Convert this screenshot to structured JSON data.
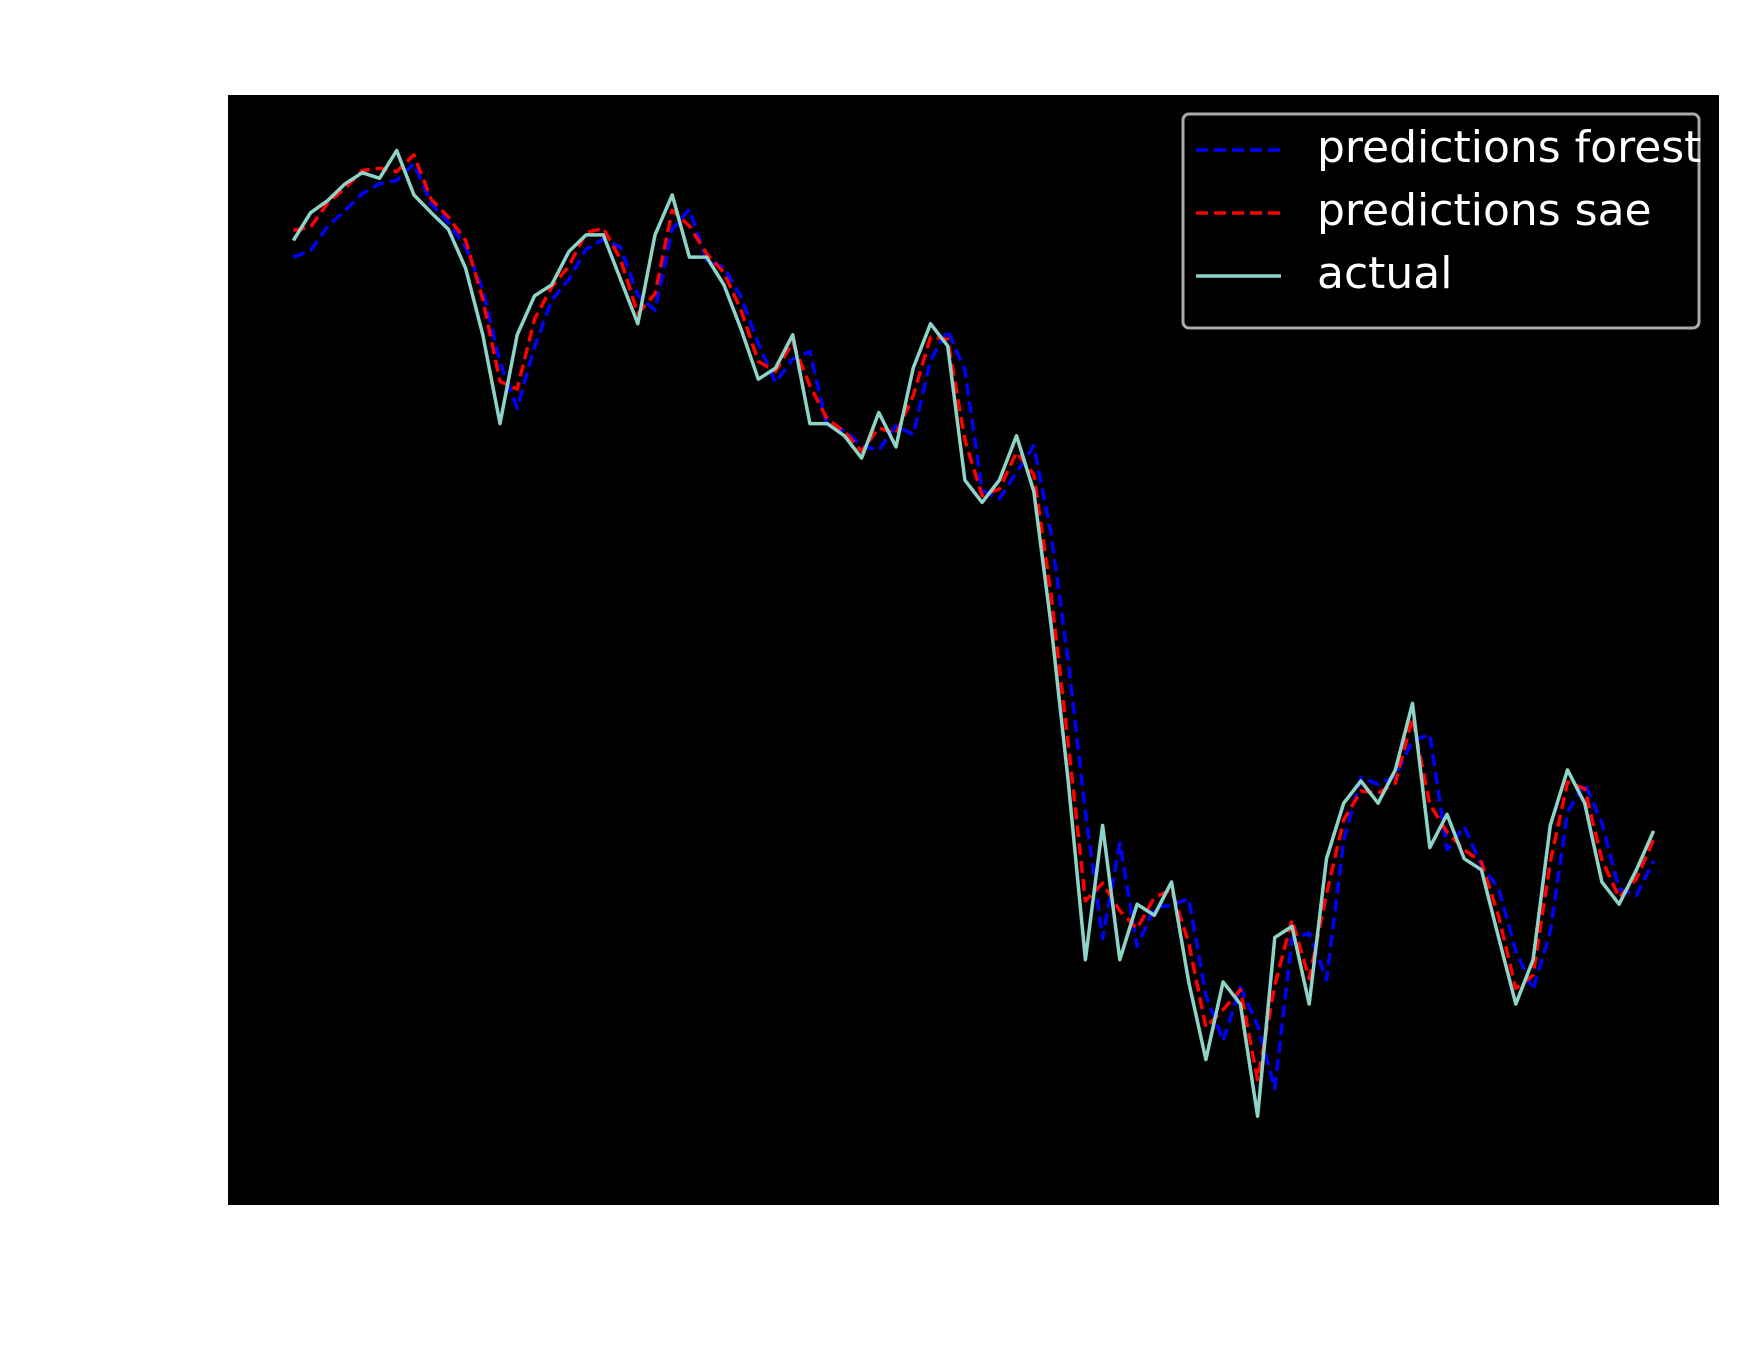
{
  "chart_data": {
    "type": "line",
    "x": [
      0,
      1,
      2,
      3,
      4,
      5,
      6,
      7,
      8,
      9,
      10,
      11,
      12,
      13,
      14,
      15,
      16,
      17,
      18,
      19,
      20,
      21,
      22,
      23,
      24,
      25,
      26,
      27,
      28,
      29,
      30,
      31,
      32,
      33,
      34,
      35,
      36,
      37,
      38,
      39,
      40,
      41,
      42,
      43,
      44,
      45,
      46,
      47,
      48,
      49,
      50,
      51,
      52,
      53,
      54,
      55,
      56,
      57,
      58,
      59,
      60,
      61,
      62,
      63,
      64,
      65,
      66,
      67,
      68,
      69,
      70,
      71,
      72,
      73,
      74,
      75,
      76,
      77,
      78,
      79
    ],
    "series": [
      {
        "name": "predictions forest",
        "color": "#0000ff",
        "linestyle": "dashed",
        "values": [
          85.4,
          86.0,
          88.2,
          89.6,
          91.1,
          92.0,
          92.3,
          93.8,
          90.2,
          88.5,
          86.3,
          82.5,
          75.9,
          71.8,
          77.3,
          81.5,
          83.4,
          86.1,
          87.0,
          86.3,
          82.0,
          80.6,
          87.9,
          89.7,
          85.1,
          84.5,
          81.8,
          77.6,
          74.1,
          76.2,
          76.9,
          70.1,
          69.8,
          68.4,
          68.0,
          70.2,
          69.4,
          76.1,
          78.8,
          75.2,
          64.4,
          63.6,
          66.0,
          68.4,
          60.5,
          49.0,
          35.4,
          24.0,
          32.6,
          23.3,
          26.8,
          27.0,
          27.6,
          18.9,
          14.8,
          19.6,
          16.2,
          10.5,
          24.0,
          24.5,
          20.3,
          32.8,
          38.5,
          37.9,
          38.6,
          41.8,
          42.4,
          32.0,
          34.1,
          30.6,
          28.5,
          22.9,
          19.4,
          24.6,
          35.4,
          38.0,
          34.4,
          28.5,
          27.9,
          31.0
        ]
      },
      {
        "name": "predictions sae",
        "color": "#ff0000",
        "linestyle": "dashed",
        "values": [
          87.8,
          88.1,
          90.3,
          91.6,
          93.2,
          93.4,
          93.1,
          94.6,
          90.6,
          89.0,
          86.9,
          81.6,
          74.2,
          73.5,
          79.8,
          82.7,
          84.6,
          87.6,
          88.0,
          85.2,
          80.3,
          82.1,
          89.6,
          88.2,
          85.7,
          84.0,
          80.6,
          76.0,
          75.1,
          77.7,
          73.8,
          70.8,
          69.7,
          67.9,
          70.0,
          69.5,
          72.9,
          78.2,
          78.0,
          68.9,
          63.9,
          64.5,
          67.8,
          65.8,
          55.0,
          41.6,
          27.4,
          29.0,
          26.5,
          24.9,
          27.7,
          28.4,
          23.6,
          16.0,
          17.6,
          19.4,
          11.3,
          19.8,
          25.7,
          20.4,
          28.0,
          34.7,
          37.3,
          37.1,
          38.0,
          43.9,
          36.1,
          33.6,
          32.0,
          30.9,
          26.0,
          19.5,
          20.7,
          30.9,
          38.1,
          37.5,
          31.1,
          27.7,
          29.4,
          32.9
        ]
      },
      {
        "name": "actual",
        "color": "#8dd3c7",
        "linestyle": "solid",
        "values": [
          86.9,
          89.4,
          90.5,
          92.0,
          93.0,
          92.5,
          95.0,
          91.0,
          89.4,
          87.9,
          84.4,
          78.4,
          70.4,
          78.4,
          81.9,
          82.9,
          85.9,
          87.4,
          87.4,
          83.4,
          79.4,
          87.4,
          91.0,
          85.4,
          85.4,
          82.9,
          78.9,
          74.4,
          75.4,
          78.4,
          70.4,
          70.4,
          69.3,
          67.3,
          71.4,
          68.3,
          75.4,
          79.4,
          77.4,
          65.3,
          63.3,
          65.3,
          69.3,
          64.3,
          52.3,
          38.2,
          22.1,
          34.2,
          22.1,
          27.1,
          26.1,
          29.1,
          20.1,
          13.1,
          20.1,
          18.1,
          8.0,
          24.1,
          25.1,
          18.1,
          31.2,
          36.2,
          38.2,
          36.2,
          39.2,
          45.2,
          32.2,
          35.2,
          31.2,
          30.2,
          24.1,
          18.1,
          22.1,
          34.2,
          39.2,
          36.2,
          29.1,
          27.1,
          30.2,
          33.7
        ]
      }
    ],
    "xlim": [
      -3.8,
      82.8
    ],
    "ylim": [
      0,
      100
    ],
    "legend": "upper right",
    "background": "#000000"
  }
}
